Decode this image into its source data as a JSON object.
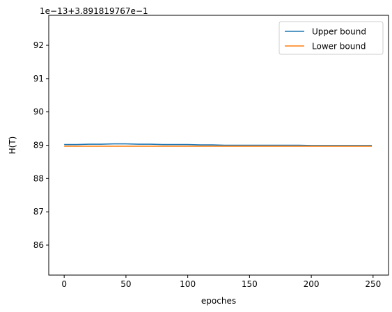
{
  "chart_data": {
    "type": "line",
    "offset_label": "1e−13+3.891819767e−1",
    "xlabel": "epoches",
    "ylabel": "H(T)",
    "xlim": [
      -12.5,
      262.5
    ],
    "ylim": [
      85.1,
      92.9
    ],
    "x_ticks": [
      0,
      50,
      100,
      150,
      200,
      250
    ],
    "y_ticks": [
      86,
      87,
      88,
      89,
      90,
      91,
      92
    ],
    "legend_position": "top-right",
    "grid": false,
    "series": [
      {
        "name": "Upper bound",
        "color": "#1f77b4",
        "x": [
          0,
          10,
          20,
          30,
          40,
          50,
          60,
          70,
          80,
          90,
          100,
          110,
          120,
          130,
          140,
          150,
          160,
          170,
          180,
          190,
          200,
          210,
          220,
          230,
          240,
          249
        ],
        "values": [
          89.02,
          89.02,
          89.03,
          89.03,
          89.04,
          89.04,
          89.03,
          89.03,
          89.02,
          89.02,
          89.02,
          89.01,
          89.01,
          89.0,
          89.0,
          89.0,
          89.0,
          89.0,
          89.0,
          89.0,
          88.99,
          88.99,
          88.99,
          88.99,
          88.99,
          88.99
        ]
      },
      {
        "name": "Lower bound",
        "color": "#ff7f0e",
        "x": [
          0,
          50,
          100,
          150,
          200,
          249
        ],
        "values": [
          88.97,
          88.97,
          88.97,
          88.97,
          88.97,
          88.97
        ]
      }
    ]
  }
}
